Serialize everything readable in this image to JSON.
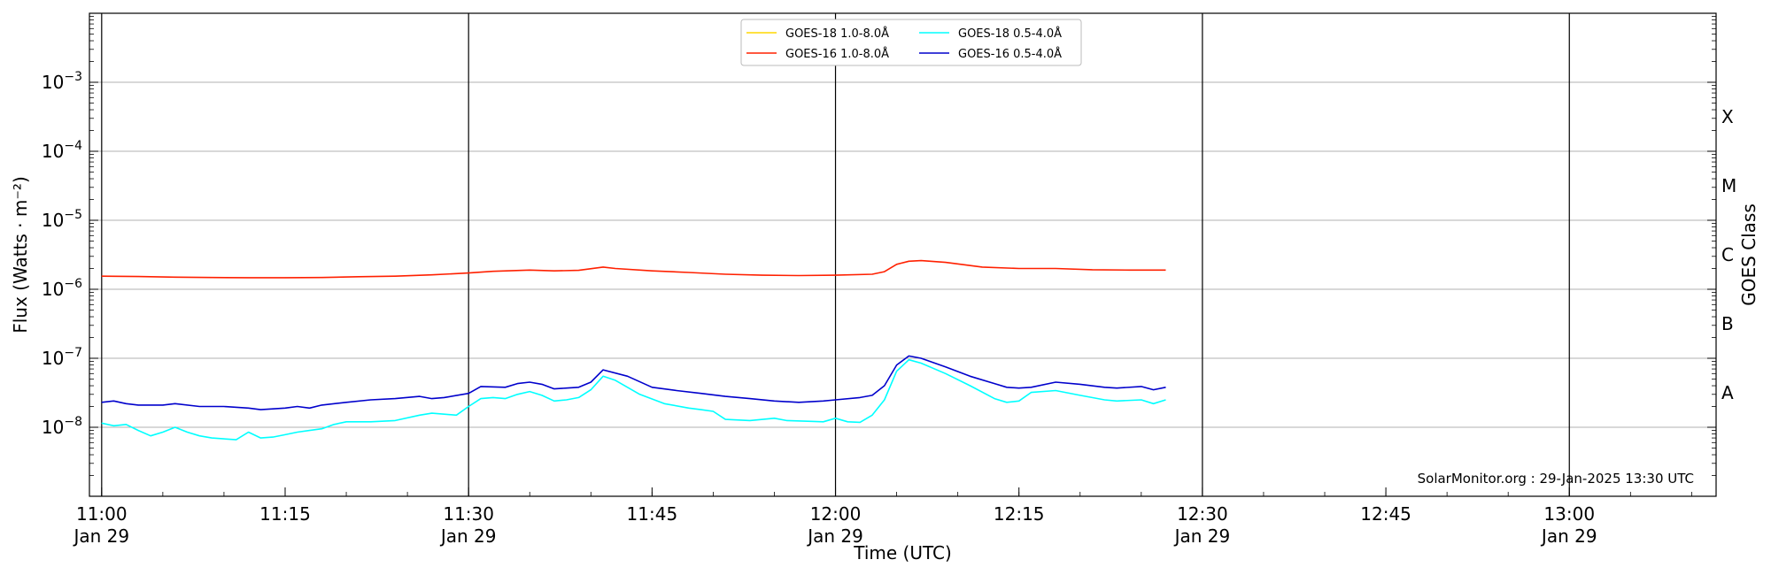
{
  "chart_data": {
    "type": "line",
    "xlabel": "Time (UTC)",
    "ylabel": "Flux (Watts · m⁻²)",
    "right_ylabel": "GOES Class",
    "watermark": "SolarMonitor.org : 29-Jan-2025 13:30 UTC",
    "x_range": [
      "10:59",
      "13:12"
    ],
    "y_scale": "log",
    "y_range": [
      1e-09,
      0.01
    ],
    "grid": "horizontal at decades",
    "legend_position": "top-center",
    "x_ticks": [
      {
        "time": "11:00",
        "label": "11:00",
        "sublabel": "Jan 29"
      },
      {
        "time": "11:15",
        "label": "11:15",
        "sublabel": ""
      },
      {
        "time": "11:30",
        "label": "11:30",
        "sublabel": "Jan 29"
      },
      {
        "time": "11:45",
        "label": "11:45",
        "sublabel": ""
      },
      {
        "time": "12:00",
        "label": "12:00",
        "sublabel": "Jan 29"
      },
      {
        "time": "12:15",
        "label": "12:15",
        "sublabel": ""
      },
      {
        "time": "12:30",
        "label": "12:30",
        "sublabel": "Jan 29"
      },
      {
        "time": "12:45",
        "label": "12:45",
        "sublabel": ""
      },
      {
        "time": "13:00",
        "label": "13:00",
        "sublabel": "Jan 29"
      }
    ],
    "y_ticks": [
      {
        "exp": -8,
        "base": "10",
        "sup": "−8"
      },
      {
        "exp": -7,
        "base": "10",
        "sup": "−7"
      },
      {
        "exp": -6,
        "base": "10",
        "sup": "−6"
      },
      {
        "exp": -5,
        "base": "10",
        "sup": "−5"
      },
      {
        "exp": -4,
        "base": "10",
        "sup": "−4"
      },
      {
        "exp": -3,
        "base": "10",
        "sup": "−3"
      }
    ],
    "day_lines": [
      "11:00",
      "11:30",
      "12:00",
      "12:30",
      "13:00"
    ],
    "goes_classes": [
      {
        "label": "A",
        "flux": 3.16e-08
      },
      {
        "label": "B",
        "flux": 3.16e-07
      },
      {
        "label": "C",
        "flux": 3.16e-06
      },
      {
        "label": "M",
        "flux": 3.16e-05
      },
      {
        "label": "X",
        "flux": 0.000316
      }
    ],
    "legend": [
      {
        "name": "GOES-18 1.0-8.0Å",
        "color": "#ffd700"
      },
      {
        "name": "GOES-18 0.5-4.0Å",
        "color": "#00ffff"
      },
      {
        "name": "GOES-16 1.0-8.0Å",
        "color": "#ff2000"
      },
      {
        "name": "GOES-16 0.5-4.0Å",
        "color": "#0000cc"
      }
    ],
    "series": [
      {
        "name": "GOES-16 1.0-8.0Å",
        "color": "#ff2000",
        "x": [
          "11:00",
          "11:03",
          "11:06",
          "11:09",
          "11:12",
          "11:15",
          "11:18",
          "11:21",
          "11:24",
          "11:27",
          "11:30",
          "11:32",
          "11:35",
          "11:37",
          "11:39",
          "11:41",
          "11:42",
          "11:45",
          "11:48",
          "11:51",
          "11:54",
          "11:57",
          "12:00",
          "12:03",
          "12:04",
          "12:05",
          "12:06",
          "12:07",
          "12:09",
          "12:12",
          "12:15",
          "12:18",
          "12:21",
          "12:24",
          "12:27"
        ],
        "y": [
          1.55e-06,
          1.53e-06,
          1.5e-06,
          1.48e-06,
          1.47e-06,
          1.47e-06,
          1.48e-06,
          1.52e-06,
          1.55e-06,
          1.62e-06,
          1.72e-06,
          1.82e-06,
          1.9e-06,
          1.85e-06,
          1.88e-06,
          2.1e-06,
          2e-06,
          1.85e-06,
          1.75e-06,
          1.65e-06,
          1.6e-06,
          1.58e-06,
          1.6e-06,
          1.65e-06,
          1.8e-06,
          2.3e-06,
          2.55e-06,
          2.6e-06,
          2.45e-06,
          2.1e-06,
          2e-06,
          2e-06,
          1.92e-06,
          1.9e-06,
          1.9e-06
        ]
      },
      {
        "name": "GOES-16 0.5-4.0Å",
        "color": "#0000cc",
        "x": [
          "11:00",
          "11:01",
          "11:02",
          "11:03",
          "11:05",
          "11:06",
          "11:08",
          "11:10",
          "11:12",
          "11:13",
          "11:15",
          "11:16",
          "11:17",
          "11:18",
          "11:20",
          "11:22",
          "11:24",
          "11:26",
          "11:27",
          "11:28",
          "11:30",
          "11:31",
          "11:33",
          "11:34",
          "11:35",
          "11:36",
          "11:37",
          "11:38",
          "11:39",
          "11:40",
          "11:41",
          "11:43",
          "11:45",
          "11:47",
          "11:49",
          "11:51",
          "11:53",
          "11:55",
          "11:57",
          "11:59",
          "12:00",
          "12:02",
          "12:03",
          "12:04",
          "12:05",
          "12:06",
          "12:07",
          "12:09",
          "12:11",
          "12:13",
          "12:14",
          "12:15",
          "12:16",
          "12:18",
          "12:20",
          "12:22",
          "12:23",
          "12:25",
          "12:26",
          "12:27"
        ],
        "y": [
          2.3e-08,
          2.4e-08,
          2.2e-08,
          2.1e-08,
          2.1e-08,
          2.2e-08,
          2e-08,
          2e-08,
          1.9e-08,
          1.8e-08,
          1.9e-08,
          2e-08,
          1.9e-08,
          2.1e-08,
          2.3e-08,
          2.5e-08,
          2.6e-08,
          2.8e-08,
          2.6e-08,
          2.7e-08,
          3.1e-08,
          3.9e-08,
          3.8e-08,
          4.3e-08,
          4.5e-08,
          4.2e-08,
          3.6e-08,
          3.7e-08,
          3.8e-08,
          4.5e-08,
          6.8e-08,
          5.5e-08,
          3.8e-08,
          3.4e-08,
          3.1e-08,
          2.8e-08,
          2.6e-08,
          2.4e-08,
          2.3e-08,
          2.4e-08,
          2.5e-08,
          2.7e-08,
          2.9e-08,
          4e-08,
          8e-08,
          1.08e-07,
          1e-07,
          7.5e-08,
          5.5e-08,
          4.3e-08,
          3.8e-08,
          3.7e-08,
          3.8e-08,
          4.5e-08,
          4.2e-08,
          3.8e-08,
          3.7e-08,
          3.9e-08,
          3.5e-08,
          3.8e-08
        ]
      },
      {
        "name": "GOES-18 0.5-4.0Å",
        "color": "#00ffff",
        "x": [
          "11:00",
          "11:01",
          "11:02",
          "11:03",
          "11:04",
          "11:05",
          "11:06",
          "11:07",
          "11:08",
          "11:09",
          "11:10",
          "11:11",
          "11:12",
          "11:13",
          "11:14",
          "11:15",
          "11:16",
          "11:17",
          "11:18",
          "11:19",
          "11:20",
          "11:22",
          "11:24",
          "11:26",
          "11:27",
          "11:28",
          "11:29",
          "11:30",
          "11:31",
          "11:32",
          "11:33",
          "11:34",
          "11:35",
          "11:36",
          "11:37",
          "11:38",
          "11:39",
          "11:40",
          "11:41",
          "11:42",
          "11:44",
          "11:46",
          "11:48",
          "11:49",
          "11:50",
          "11:51",
          "11:53",
          "11:55",
          "11:56",
          "11:58",
          "11:59",
          "12:00",
          "12:01",
          "12:02",
          "12:03",
          "12:04",
          "12:05",
          "12:06",
          "12:07",
          "12:09",
          "12:11",
          "12:13",
          "12:14",
          "12:15",
          "12:16",
          "12:18",
          "12:20",
          "12:22",
          "12:23",
          "12:25",
          "12:26",
          "12:27"
        ],
        "y": [
          1.15e-08,
          1.05e-08,
          1.1e-08,
          9e-09,
          7.5e-09,
          8.5e-09,
          1e-08,
          8.5e-09,
          7.5e-09,
          7e-09,
          6.8e-09,
          6.6e-09,
          8.5e-09,
          7e-09,
          7.2e-09,
          7.8e-09,
          8.5e-09,
          9e-09,
          9.5e-09,
          1.1e-08,
          1.2e-08,
          1.2e-08,
          1.25e-08,
          1.5e-08,
          1.6e-08,
          1.55e-08,
          1.5e-08,
          2e-08,
          2.6e-08,
          2.7e-08,
          2.6e-08,
          3e-08,
          3.3e-08,
          2.9e-08,
          2.4e-08,
          2.5e-08,
          2.7e-08,
          3.5e-08,
          5.5e-08,
          4.8e-08,
          3e-08,
          2.2e-08,
          1.9e-08,
          1.8e-08,
          1.7e-08,
          1.3e-08,
          1.25e-08,
          1.35e-08,
          1.25e-08,
          1.22e-08,
          1.2e-08,
          1.35e-08,
          1.2e-08,
          1.18e-08,
          1.5e-08,
          2.5e-08,
          6.5e-08,
          9.5e-08,
          8.5e-08,
          6e-08,
          4e-08,
          2.6e-08,
          2.3e-08,
          2.4e-08,
          3.2e-08,
          3.4e-08,
          2.9e-08,
          2.5e-08,
          2.4e-08,
          2.5e-08,
          2.2e-08,
          2.5e-08
        ]
      }
    ]
  }
}
